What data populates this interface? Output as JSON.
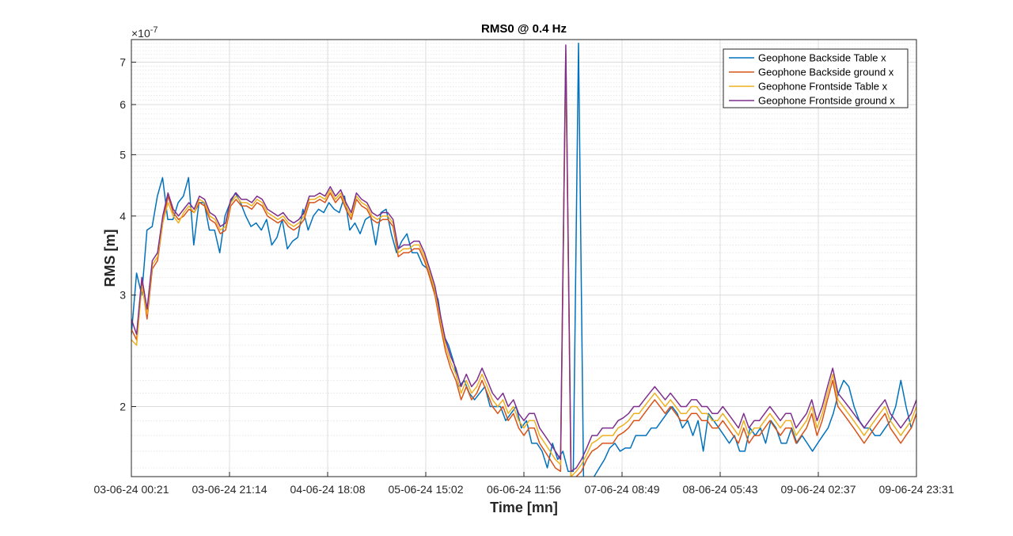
{
  "chart_data": {
    "type": "line",
    "title": "RMS0 @ 0.4 Hz",
    "xlabel": "Time [mn]",
    "ylabel": "RMS [m]",
    "y_exponent_label": "×10",
    "y_exponent": "-7",
    "y_scale": "log",
    "ylim": [
      1.55,
      7.6
    ],
    "y_ticks": [
      2,
      3,
      4,
      5,
      6,
      7
    ],
    "x_ticks": [
      "03-06-24 00:21",
      "03-06-24 21:14",
      "04-06-24 18:08",
      "05-06-24 15:02",
      "06-06-24 11:56",
      "07-06-24 08:49",
      "08-06-24 05:43",
      "09-06-24 02:37",
      "09-06-24 23:31"
    ],
    "grid": true,
    "legend_position": "top-right",
    "series": [
      {
        "name": "Geophone Backside Table x",
        "color": "#0072BD",
        "values": [
          2.6,
          3.25,
          3.0,
          3.8,
          3.85,
          4.3,
          4.6,
          3.95,
          3.95,
          4.2,
          4.3,
          4.6,
          3.6,
          4.2,
          4.2,
          3.8,
          3.8,
          3.5,
          4.0,
          4.2,
          4.35,
          4.2,
          4.0,
          3.85,
          3.9,
          3.8,
          3.95,
          3.6,
          3.7,
          3.95,
          3.55,
          3.65,
          3.7,
          4.1,
          3.8,
          4.0,
          4.1,
          4.05,
          4.2,
          4.1,
          4.05,
          4.3,
          3.8,
          3.9,
          3.75,
          3.95,
          4.0,
          3.6,
          4.05,
          4.1,
          3.75,
          3.5,
          3.65,
          3.75,
          3.5,
          3.5,
          3.35,
          3.3,
          3.1,
          2.95,
          2.6,
          2.5,
          2.35,
          2.15,
          2.2,
          2.1,
          2.05,
          2.1,
          2.15,
          2.0,
          2.0,
          2.0,
          1.9,
          1.95,
          2.0,
          1.85,
          1.9,
          1.75,
          1.75,
          1.7,
          1.6,
          1.75,
          1.65,
          1.7,
          1.58,
          1.58,
          7.5,
          1.47,
          1.48,
          1.55,
          1.6,
          1.65,
          1.72,
          1.75,
          1.7,
          1.72,
          1.72,
          1.8,
          1.8,
          1.8,
          1.85,
          1.85,
          1.9,
          1.95,
          2.0,
          1.95,
          1.85,
          1.9,
          1.8,
          1.9,
          1.7,
          1.95,
          1.9,
          1.85,
          1.8,
          1.75,
          1.8,
          1.7,
          1.7,
          1.85,
          1.8,
          1.85,
          1.75,
          1.9,
          1.85,
          1.75,
          1.75,
          1.85,
          1.75,
          1.8,
          1.75,
          1.7,
          1.75,
          1.8,
          1.85,
          1.95,
          2.1,
          2.2,
          2.15,
          2.0,
          1.9,
          1.85,
          1.85,
          1.8,
          1.8,
          1.85,
          1.9,
          2.0,
          2.2,
          2.0,
          1.85,
          1.95
        ]
      },
      {
        "name": "Geophone Backside ground x",
        "color": "#D95319",
        "values": [
          2.65,
          2.55,
          3.15,
          2.75,
          3.3,
          3.4,
          3.9,
          4.3,
          4.05,
          3.95,
          4.0,
          4.1,
          4.05,
          4.2,
          4.15,
          3.95,
          3.9,
          3.75,
          3.8,
          4.15,
          4.25,
          4.15,
          4.15,
          4.1,
          4.2,
          4.15,
          4.0,
          3.95,
          3.9,
          3.95,
          3.85,
          3.8,
          3.85,
          3.95,
          4.2,
          4.2,
          4.25,
          4.2,
          4.35,
          4.2,
          4.3,
          4.1,
          3.95,
          4.25,
          4.15,
          4.1,
          3.95,
          3.9,
          3.95,
          3.95,
          3.85,
          3.45,
          3.5,
          3.5,
          3.55,
          3.55,
          3.4,
          3.2,
          3.0,
          2.7,
          2.45,
          2.3,
          2.2,
          2.05,
          2.15,
          2.05,
          2.1,
          2.2,
          2.1,
          2.0,
          1.95,
          2.0,
          1.9,
          1.95,
          1.85,
          1.8,
          1.85,
          1.85,
          1.75,
          1.7,
          1.65,
          1.6,
          1.58,
          7.2,
          1.52,
          1.55,
          1.58,
          1.65,
          1.7,
          1.72,
          1.75,
          1.75,
          1.75,
          1.8,
          1.82,
          1.85,
          1.9,
          1.9,
          1.95,
          2.0,
          2.05,
          2.0,
          1.95,
          2.0,
          1.95,
          1.9,
          1.9,
          1.95,
          1.95,
          1.9,
          1.9,
          1.85,
          1.85,
          1.9,
          1.85,
          1.8,
          1.75,
          1.85,
          1.75,
          1.8,
          1.8,
          1.85,
          1.9,
          1.85,
          1.8,
          1.85,
          1.85,
          1.75,
          1.8,
          1.85,
          1.95,
          1.8,
          1.9,
          2.05,
          2.2,
          2.0,
          1.95,
          1.9,
          1.85,
          1.8,
          1.75,
          1.8,
          1.85,
          1.9,
          1.95,
          1.85,
          1.8,
          1.75,
          1.8,
          1.85,
          1.95
        ]
      },
      {
        "name": "Geophone Frontside Table x",
        "color": "#EDB120",
        "values": [
          2.55,
          2.5,
          3.1,
          2.8,
          3.35,
          3.45,
          3.9,
          4.2,
          4.0,
          3.9,
          4.05,
          4.15,
          4.05,
          4.25,
          4.2,
          4.0,
          3.95,
          3.8,
          3.85,
          4.2,
          4.3,
          4.2,
          4.2,
          4.15,
          4.25,
          4.2,
          4.05,
          4.0,
          3.95,
          4.0,
          3.9,
          3.85,
          3.9,
          4.0,
          4.25,
          4.25,
          4.3,
          4.25,
          4.4,
          4.25,
          4.35,
          4.15,
          4.0,
          4.3,
          4.2,
          4.15,
          4.0,
          3.95,
          4.0,
          4.0,
          3.9,
          3.5,
          3.55,
          3.55,
          3.6,
          3.6,
          3.45,
          3.25,
          3.05,
          2.75,
          2.5,
          2.35,
          2.25,
          2.1,
          2.2,
          2.1,
          2.15,
          2.25,
          2.15,
          2.05,
          2.0,
          2.05,
          1.95,
          2.0,
          1.9,
          1.85,
          1.9,
          1.9,
          1.8,
          1.75,
          1.7,
          1.65,
          1.62,
          7.3,
          1.55,
          1.58,
          1.62,
          1.68,
          1.75,
          1.77,
          1.8,
          1.8,
          1.8,
          1.85,
          1.87,
          1.9,
          1.95,
          1.95,
          2.0,
          2.05,
          2.1,
          2.05,
          2.0,
          2.05,
          2.0,
          1.95,
          1.95,
          2.0,
          2.0,
          1.95,
          1.95,
          1.9,
          1.9,
          1.95,
          1.9,
          1.85,
          1.8,
          1.9,
          1.8,
          1.85,
          1.85,
          1.9,
          1.95,
          1.9,
          1.85,
          1.9,
          1.9,
          1.8,
          1.85,
          1.9,
          2.0,
          1.85,
          1.95,
          2.1,
          2.25,
          2.05,
          2.0,
          1.95,
          1.9,
          1.85,
          1.8,
          1.85,
          1.9,
          1.95,
          2.0,
          1.9,
          1.85,
          1.8,
          1.85,
          1.9,
          2.0
        ]
      },
      {
        "name": "Geophone Frontside ground x",
        "color": "#7E2F8E",
        "values": [
          2.75,
          2.6,
          3.2,
          2.85,
          3.4,
          3.5,
          4.0,
          4.35,
          4.1,
          4.0,
          4.1,
          4.2,
          4.1,
          4.3,
          4.25,
          4.05,
          4.0,
          3.85,
          3.9,
          4.25,
          4.35,
          4.25,
          4.25,
          4.2,
          4.3,
          4.25,
          4.1,
          4.05,
          4.0,
          4.05,
          3.95,
          3.9,
          3.95,
          4.05,
          4.3,
          4.3,
          4.35,
          4.3,
          4.45,
          4.3,
          4.4,
          4.2,
          4.05,
          4.35,
          4.25,
          4.2,
          4.05,
          4.0,
          4.05,
          4.05,
          3.95,
          3.55,
          3.6,
          3.6,
          3.65,
          3.65,
          3.5,
          3.3,
          3.1,
          2.8,
          2.55,
          2.4,
          2.3,
          2.15,
          2.25,
          2.15,
          2.2,
          2.3,
          2.2,
          2.1,
          2.05,
          2.1,
          2.0,
          2.05,
          1.95,
          1.9,
          1.95,
          1.95,
          1.85,
          1.8,
          1.75,
          1.7,
          1.65,
          7.45,
          1.58,
          1.6,
          1.65,
          1.72,
          1.8,
          1.8,
          1.85,
          1.85,
          1.85,
          1.9,
          1.92,
          1.95,
          2.0,
          2.0,
          2.05,
          2.1,
          2.15,
          2.1,
          2.05,
          2.1,
          2.05,
          2.0,
          2.0,
          2.05,
          2.05,
          2.0,
          2.0,
          1.95,
          1.95,
          2.0,
          1.95,
          1.9,
          1.85,
          1.95,
          1.85,
          1.9,
          1.9,
          1.95,
          2.0,
          1.95,
          1.9,
          1.95,
          1.95,
          1.85,
          1.9,
          1.95,
          2.05,
          1.9,
          2.0,
          2.15,
          2.3,
          2.1,
          2.05,
          2.0,
          1.95,
          1.9,
          1.85,
          1.9,
          1.95,
          2.0,
          2.05,
          1.95,
          1.9,
          1.85,
          1.9,
          1.95,
          2.05
        ]
      }
    ]
  }
}
